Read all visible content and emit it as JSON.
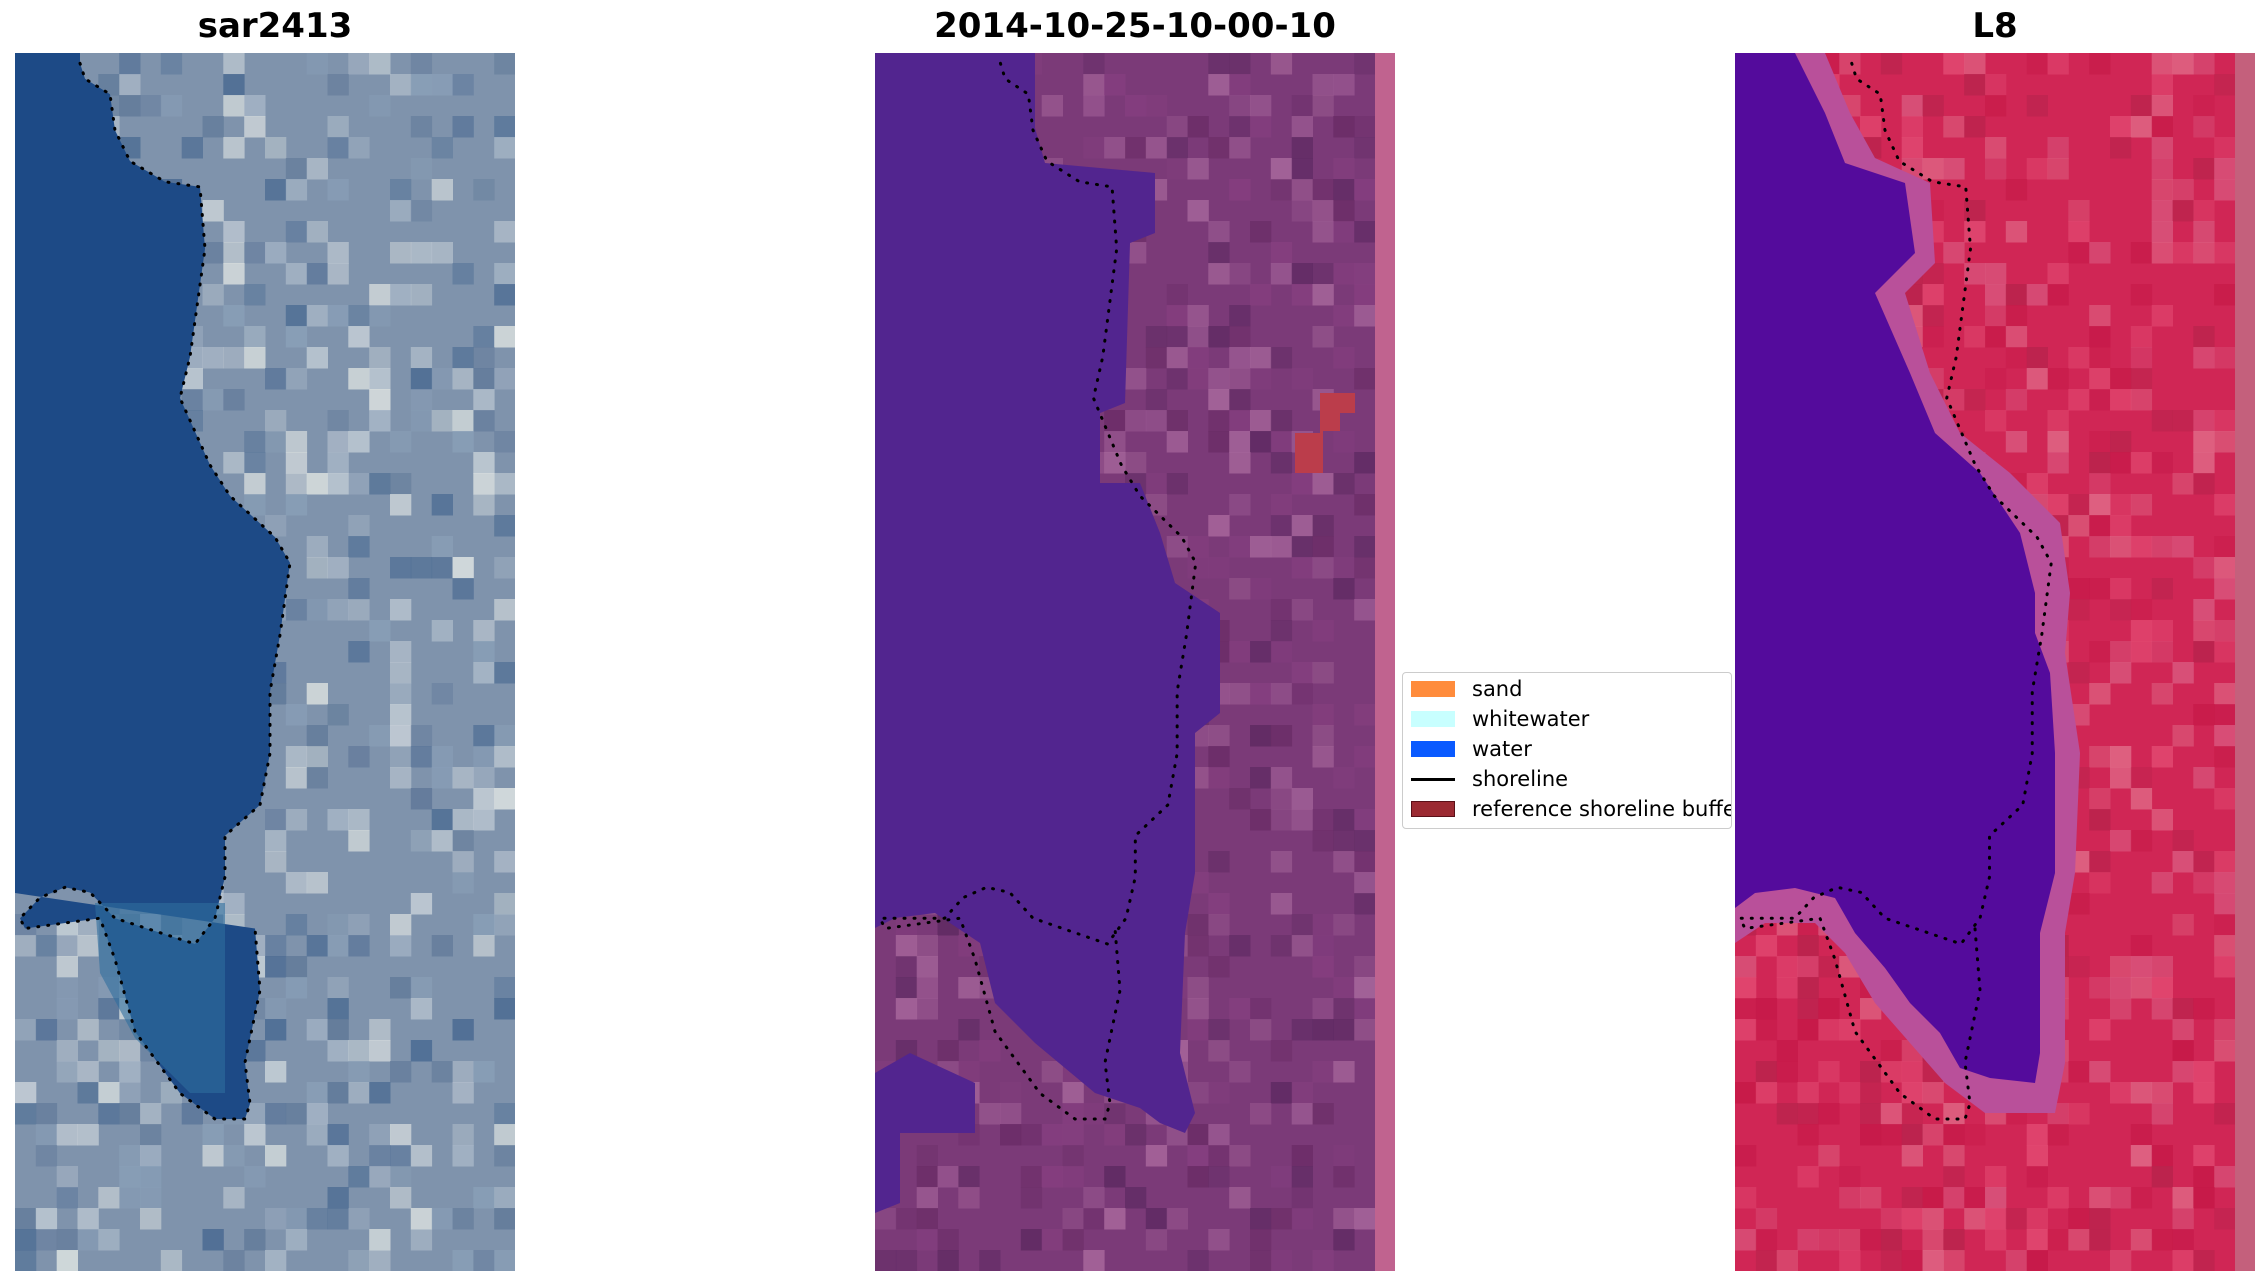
{
  "panels": [
    {
      "title": "sar2413"
    },
    {
      "title": "2014-10-25-10-00-10"
    },
    {
      "title": "L8"
    }
  ],
  "legend": {
    "entries": [
      {
        "label": "sand",
        "color": "#ff8c3c",
        "kind": "patch"
      },
      {
        "label": "whitewater",
        "color": "#c8ffff",
        "kind": "patch"
      },
      {
        "label": "water",
        "color": "#0a5aff",
        "kind": "patch"
      },
      {
        "label": "shoreline",
        "color": "#000000",
        "kind": "line"
      },
      {
        "label": "reference shoreline buffer",
        "color": "#9b2a32",
        "kind": "patch"
      }
    ]
  },
  "colors": {
    "rgb_water": "#1d4a86",
    "rgb_land": "#7f93ac",
    "classified_water": "#52258f",
    "classified_land": "#7b3a78",
    "classified_buffer": "#bb3d4b",
    "classified_edge_strip": "#c0638f",
    "mndwi_water": "#540b9c",
    "mndwi_land": "#d02655",
    "mndwi_edge_strip": "#c4607c"
  }
}
